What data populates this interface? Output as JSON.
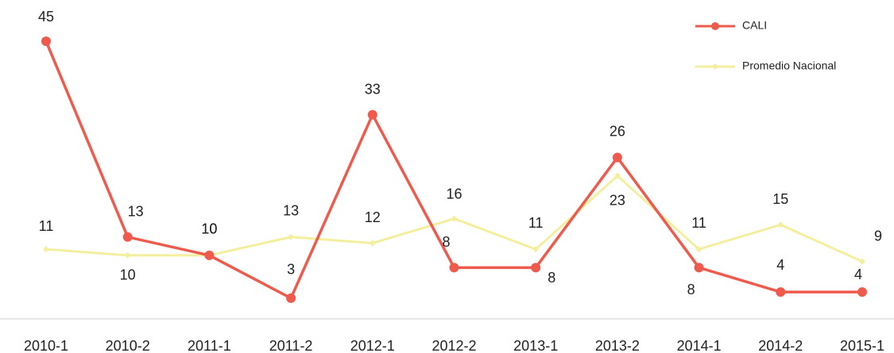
{
  "chart_data": {
    "type": "line",
    "categories": [
      "2010-1",
      "2010-2",
      "2011-1",
      "2011-2",
      "2012-1",
      "2012-2",
      "2013-1",
      "2013-2",
      "2014-1",
      "2014-2",
      "2015-1"
    ],
    "series": [
      {
        "name": "CALI",
        "color": "#ee5a4c",
        "values": [
          45,
          13,
          10,
          3,
          33,
          8,
          8,
          26,
          8,
          4,
          4
        ]
      },
      {
        "name": "Promedio Nacional",
        "color": "#f3ef9e",
        "values": [
          11,
          10,
          10,
          13,
          12,
          16,
          11,
          23,
          11,
          15,
          9
        ]
      }
    ],
    "ylim": [
      0,
      50
    ],
    "legend": "upper right"
  }
}
